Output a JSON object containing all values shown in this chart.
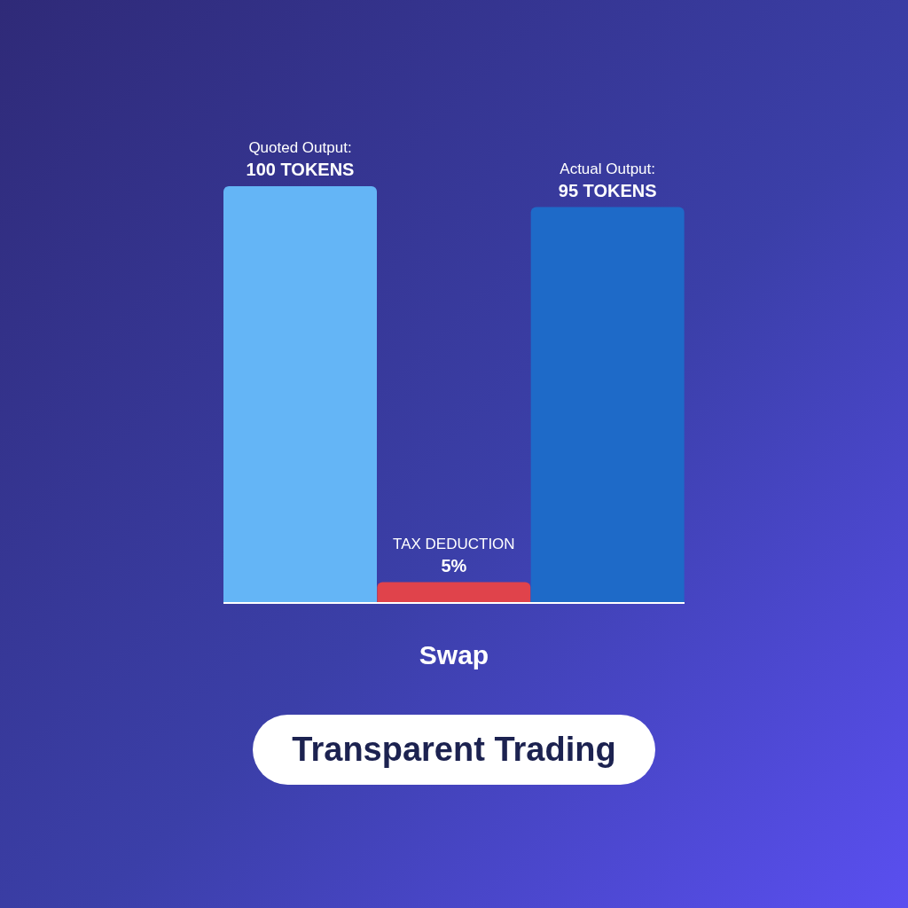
{
  "chart_data": {
    "type": "bar",
    "xlabel": "Swap",
    "categories": [
      null,
      null,
      null
    ],
    "values": [
      100,
      5,
      95
    ],
    "colors": [
      "#64b5f6",
      "#e0434b",
      "#1e6ac8"
    ],
    "value_labels": [
      "Quoted Output:\n100 TOKENS",
      "TAX DEDUCTION\n5%",
      "Actual Output:\n95 TOKENS"
    ],
    "annotations": [
      "Transparent Trading"
    ]
  }
}
